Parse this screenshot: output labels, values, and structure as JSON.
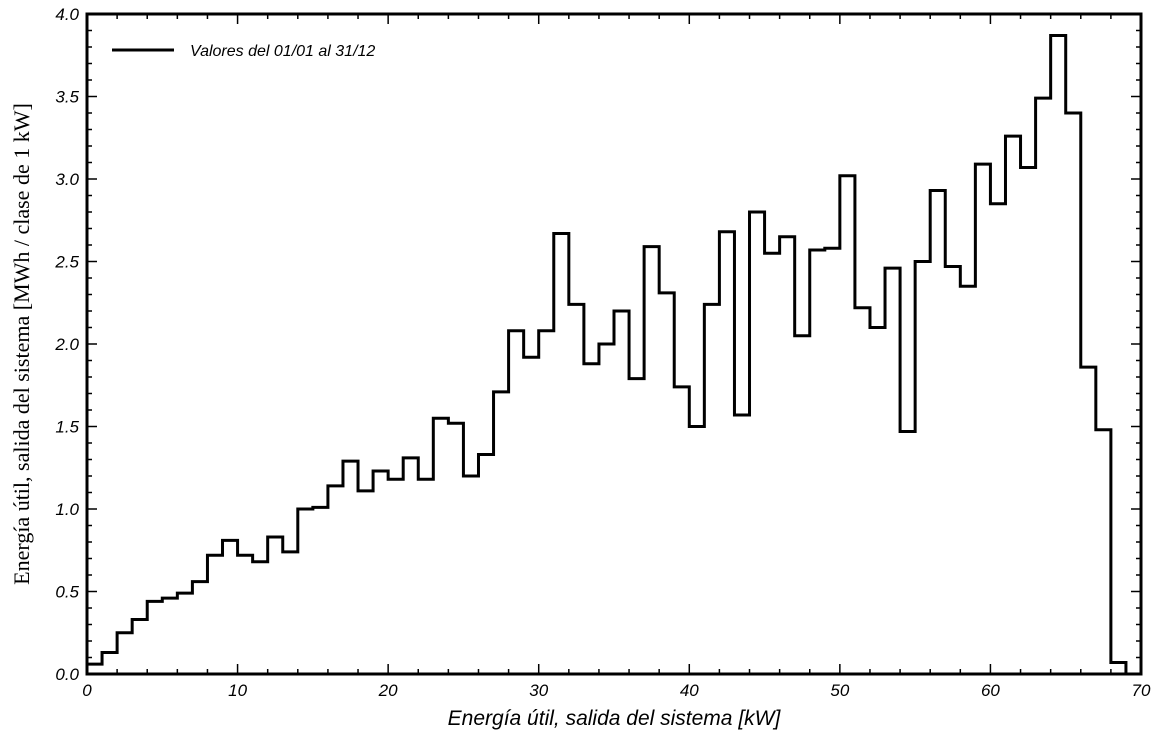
{
  "chart_data": {
    "type": "bar",
    "style": "step-histogram",
    "xlabel": "Energía útil, salida del sistema [kW]",
    "ylabel": "Energía útil, salida del sistema [MWh / clase de 1 kW]",
    "xlim": [
      0,
      70
    ],
    "ylim": [
      0,
      4.0
    ],
    "x_ticks": [
      "0",
      "10",
      "20",
      "30",
      "40",
      "50",
      "60",
      "70"
    ],
    "y_ticks": [
      "0.0",
      "0.5",
      "1.0",
      "1.5",
      "2.0",
      "2.5",
      "3.0",
      "3.5",
      "4.0"
    ],
    "grid": false,
    "legend_position": "top-left",
    "series": [
      {
        "name": "Valores del 01/01 al 31/12",
        "color": "#000000",
        "bin_width": 1,
        "x_start": 0,
        "values": [
          0.06,
          0.13,
          0.25,
          0.33,
          0.44,
          0.46,
          0.49,
          0.56,
          0.72,
          0.81,
          0.72,
          0.68,
          0.83,
          0.74,
          1.0,
          1.01,
          1.14,
          1.29,
          1.11,
          1.23,
          1.18,
          1.31,
          1.18,
          1.55,
          1.52,
          1.2,
          1.33,
          1.71,
          2.08,
          1.92,
          2.08,
          2.67,
          2.24,
          1.88,
          2.0,
          2.2,
          1.79,
          2.59,
          2.31,
          1.74,
          1.5,
          2.24,
          2.68,
          1.57,
          2.8,
          2.55,
          2.65,
          2.05,
          2.57,
          2.58,
          3.02,
          2.22,
          2.1,
          2.46,
          1.47,
          2.5,
          2.93,
          2.47,
          2.35,
          3.09,
          2.85,
          3.26,
          3.07,
          3.49,
          3.87,
          3.4,
          1.86,
          1.48,
          0.07,
          0.0
        ]
      }
    ]
  }
}
